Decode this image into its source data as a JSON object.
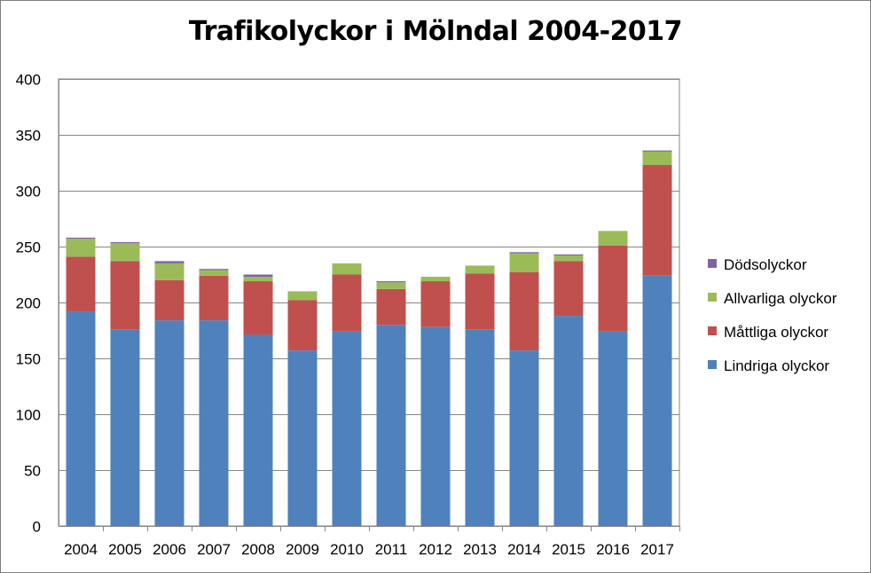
{
  "chart_data": {
    "type": "bar",
    "stacked": true,
    "title": "Trafikolyckor i Mölndal 2004-2017",
    "xlabel": "",
    "ylabel": "",
    "ylim": [
      0,
      400
    ],
    "yticks": [
      "0",
      "50",
      "100",
      "150",
      "200",
      "250",
      "300",
      "350",
      "400"
    ],
    "grid": true,
    "legend_position": "right",
    "categories": [
      "2004",
      "2005",
      "2006",
      "2007",
      "2008",
      "2009",
      "2010",
      "2011",
      "2012",
      "2013",
      "2014",
      "2015",
      "2016",
      "2017"
    ],
    "series": [
      {
        "name": "Lindriga olyckor",
        "color": "#4f81bd",
        "values": [
          192,
          176,
          184,
          184,
          171,
          157,
          174,
          180,
          178,
          176,
          157,
          188,
          174,
          224
        ]
      },
      {
        "name": "Måttliga olyckor",
        "color": "#c0504d",
        "values": [
          49,
          61,
          36,
          40,
          48,
          45,
          51,
          32,
          41,
          50,
          70,
          49,
          77,
          99
        ]
      },
      {
        "name": "Allvarliga olyckor",
        "color": "#9bbb59",
        "values": [
          16,
          16,
          15,
          5,
          4,
          8,
          10,
          6,
          4,
          7,
          17,
          5,
          13,
          12
        ]
      },
      {
        "name": "Dödsolyckor",
        "color": "#8064a2",
        "values": [
          1,
          1,
          2,
          1,
          2,
          0,
          0,
          1,
          0,
          0,
          1,
          1,
          0,
          1
        ]
      }
    ]
  }
}
